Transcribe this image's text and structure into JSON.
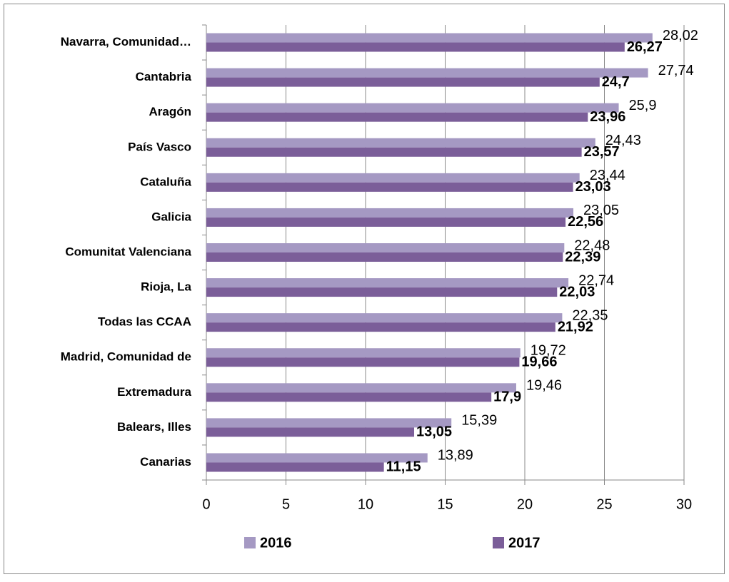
{
  "chart_data": {
    "type": "hbar",
    "categories": [
      "Navarra, Comunidad…",
      "Cantabria",
      "Aragón",
      "País Vasco",
      "Cataluña",
      "Galicia",
      "Comunitat Valenciana",
      "Rioja, La",
      "Todas las CCAA",
      "Madrid, Comunidad de",
      "Extremadura",
      "Balears, Illes",
      "Canarias"
    ],
    "series": [
      {
        "name": "2016",
        "color": "#a599c3",
        "values": [
          28.02,
          27.74,
          25.9,
          24.43,
          23.44,
          23.05,
          22.48,
          22.74,
          22.35,
          19.72,
          19.46,
          15.39,
          13.89
        ],
        "value_labels": [
          "28,02",
          "27,74",
          "25,9",
          "24,43",
          "23,44",
          "23,05",
          "22,48",
          "22,74",
          "22,35",
          "19,72",
          "19,46",
          "15,39",
          "13,89"
        ]
      },
      {
        "name": "2017",
        "color": "#7b5e99",
        "values": [
          26.27,
          24.7,
          23.96,
          23.57,
          23.03,
          22.56,
          22.39,
          22.03,
          21.92,
          19.66,
          17.9,
          13.05,
          11.15
        ],
        "value_labels": [
          "26,27",
          "24,7",
          "23,96",
          "23,57",
          "23,03",
          "22,56",
          "22,39",
          "22,03",
          "21,92",
          "19,66",
          "17,9",
          "13,05",
          "11,15"
        ]
      }
    ],
    "xlim": [
      0,
      30
    ],
    "xticks": [
      0,
      5,
      10,
      15,
      20,
      25,
      30
    ],
    "grid": true,
    "legend": "bottom"
  }
}
